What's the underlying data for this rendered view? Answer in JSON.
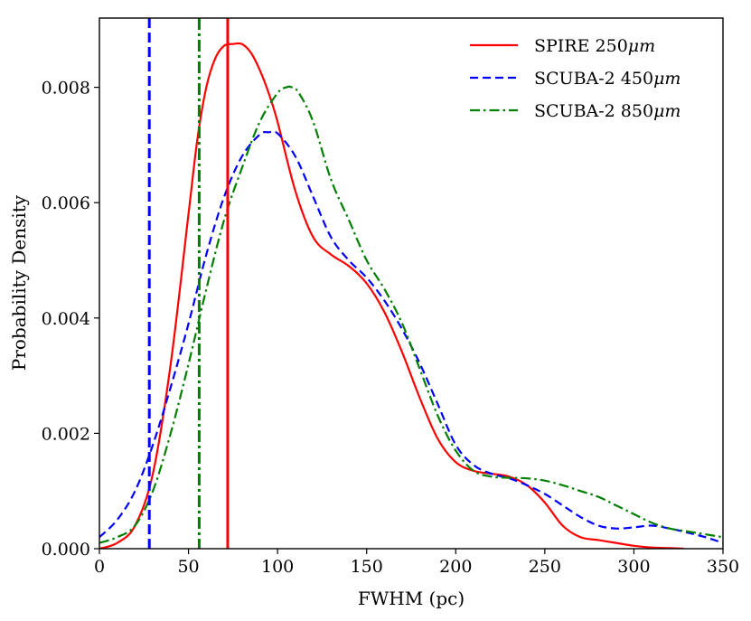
{
  "chart_data": {
    "type": "line",
    "title": "",
    "xlabel": "FWHM (pc)",
    "ylabel": "Probability Density",
    "xlim": [
      0,
      350
    ],
    "ylim": [
      0,
      0.0092
    ],
    "x_ticks": [
      0,
      50,
      100,
      150,
      200,
      250,
      300,
      350
    ],
    "x_tick_labels": [
      "0",
      "50",
      "100",
      "150",
      "200",
      "250",
      "300",
      "350"
    ],
    "y_ticks": [
      0.0,
      0.002,
      0.004,
      0.006,
      0.008
    ],
    "y_tick_labels": [
      "0.000",
      "0.002",
      "0.004",
      "0.006",
      "0.008"
    ],
    "legend_position": "top-right",
    "series": [
      {
        "name": "SPIRE 250μm",
        "legend_label_main": "SPIRE 250",
        "legend_label_unit": "μm",
        "color": "#ff0000",
        "style": "solid",
        "vline": 72,
        "x": [
          0,
          10,
          20,
          30,
          40,
          50,
          55,
          60,
          65,
          70,
          75,
          80,
          85,
          90,
          95,
          100,
          110,
          120,
          130,
          140,
          150,
          160,
          170,
          180,
          190,
          200,
          210,
          220,
          230,
          240,
          250,
          260,
          270,
          280,
          290,
          300,
          310,
          320,
          328
        ],
        "y": [
          0.0,
          0.0001,
          0.0004,
          0.0013,
          0.0032,
          0.0058,
          0.0071,
          0.008,
          0.0085,
          0.00872,
          0.00875,
          0.00875,
          0.0086,
          0.0083,
          0.0079,
          0.0074,
          0.0062,
          0.0054,
          0.0051,
          0.0049,
          0.0046,
          0.0041,
          0.0034,
          0.0026,
          0.0019,
          0.0015,
          0.00135,
          0.0013,
          0.00125,
          0.0011,
          0.0008,
          0.0004,
          0.0002,
          0.00015,
          0.0001,
          5e-05,
          2e-05,
          1e-05,
          0.0
        ]
      },
      {
        "name": "SCUBA-2 450μm",
        "legend_label_main": "SCUBA-2 450",
        "legend_label_unit": "μm",
        "color": "#0000ff",
        "style": "dashed",
        "vline": 28,
        "x": [
          0,
          10,
          20,
          30,
          40,
          50,
          60,
          70,
          80,
          90,
          95,
          100,
          110,
          120,
          130,
          140,
          150,
          160,
          170,
          180,
          190,
          200,
          210,
          220,
          230,
          240,
          250,
          260,
          270,
          280,
          290,
          300,
          310,
          320,
          330,
          340,
          350
        ],
        "y": [
          0.0002,
          0.0005,
          0.001,
          0.0018,
          0.0028,
          0.0039,
          0.0051,
          0.0061,
          0.0068,
          0.00718,
          0.00722,
          0.0072,
          0.0068,
          0.0061,
          0.0054,
          0.005,
          0.0047,
          0.0043,
          0.0038,
          0.0032,
          0.0025,
          0.0018,
          0.00145,
          0.0013,
          0.00122,
          0.0011,
          0.00095,
          0.00075,
          0.00055,
          0.0004,
          0.00035,
          0.00037,
          0.0004,
          0.00035,
          0.00028,
          0.0002,
          0.0001
        ]
      },
      {
        "name": "SCUBA-2 850μm",
        "legend_label_main": "SCUBA-2 850",
        "legend_label_unit": "μm",
        "color": "#008000",
        "style": "dashdot",
        "vline": 56,
        "x": [
          0,
          10,
          20,
          30,
          40,
          50,
          60,
          70,
          80,
          90,
          100,
          105,
          108,
          112,
          120,
          130,
          140,
          150,
          160,
          170,
          180,
          190,
          200,
          210,
          220,
          230,
          240,
          250,
          260,
          270,
          280,
          290,
          300,
          310,
          320,
          330,
          340,
          350
        ],
        "y": [
          0.0001,
          0.0002,
          0.0004,
          0.001,
          0.002,
          0.0032,
          0.0045,
          0.0057,
          0.0066,
          0.0074,
          0.0079,
          0.008,
          0.008,
          0.0079,
          0.0074,
          0.0064,
          0.0057,
          0.005,
          0.0045,
          0.0039,
          0.0031,
          0.0023,
          0.0017,
          0.00135,
          0.00125,
          0.00123,
          0.00122,
          0.00118,
          0.0011,
          0.001,
          0.0009,
          0.00075,
          0.0006,
          0.00045,
          0.00035,
          0.0003,
          0.00025,
          0.0002
        ]
      }
    ]
  }
}
